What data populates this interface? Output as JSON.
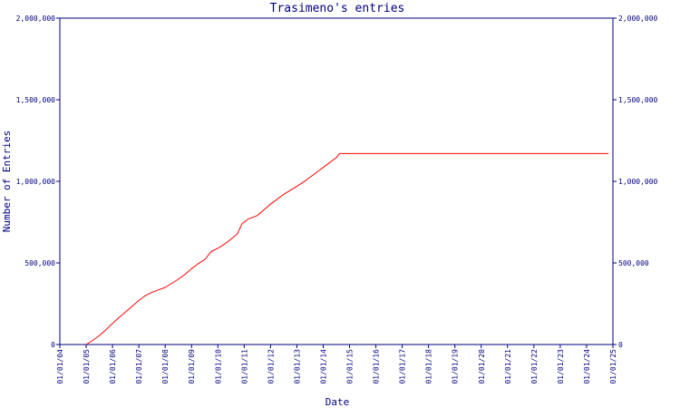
{
  "chart_data": {
    "type": "line",
    "title": "Trasimeno's entries",
    "xlabel": "Date",
    "ylabel": "Number of Entries",
    "x_ticks": [
      "01/01/04",
      "01/01/05",
      "01/01/06",
      "01/01/07",
      "01/01/08",
      "01/01/09",
      "01/01/10",
      "01/01/11",
      "01/01/12",
      "01/01/13",
      "01/01/14",
      "01/01/15",
      "01/01/16",
      "01/01/17",
      "01/01/18",
      "01/01/19",
      "01/01/20",
      "01/01/21",
      "01/01/22",
      "01/01/23",
      "01/01/24",
      "01/01/25"
    ],
    "y_ticks": [
      "0",
      "500,000",
      "1,000,000",
      "1,500,000",
      "2,000,000"
    ],
    "y_tick_values": [
      0,
      500000,
      1000000,
      1500000,
      2000000
    ],
    "ylim": [
      0,
      2000000
    ],
    "xlim": [
      "2004-01-01",
      "2025-01-01"
    ],
    "grid": false,
    "y_axis_both_sides": true,
    "series": [
      {
        "color": "#ff0000",
        "x": [
          "2005-01-01",
          "2005-04-01",
          "2005-07-01",
          "2005-10-01",
          "2006-01-01",
          "2006-04-01",
          "2006-07-01",
          "2006-10-01",
          "2007-01-01",
          "2007-04-01",
          "2007-07-01",
          "2007-10-01",
          "2008-01-01",
          "2008-04-01",
          "2008-07-01",
          "2008-10-01",
          "2009-01-01",
          "2009-04-01",
          "2009-07-01",
          "2009-10-01",
          "2010-01-01",
          "2010-04-01",
          "2010-07-01",
          "2010-10-01",
          "2010-12-01",
          "2011-03-01",
          "2011-07-01",
          "2011-10-01",
          "2012-01-01",
          "2012-04-01",
          "2012-07-01",
          "2012-10-01",
          "2013-01-01",
          "2013-04-01",
          "2013-07-01",
          "2013-10-01",
          "2014-01-01",
          "2014-04-01",
          "2014-07-01",
          "2014-08-15",
          "2015-01-01",
          "2016-01-01",
          "2018-01-01",
          "2020-01-01",
          "2022-01-01",
          "2024-01-01",
          "2024-11-01"
        ],
        "values": [
          0,
          25000,
          55000,
          90000,
          130000,
          165000,
          200000,
          235000,
          270000,
          300000,
          320000,
          335000,
          350000,
          375000,
          400000,
          430000,
          465000,
          495000,
          520000,
          570000,
          590000,
          615000,
          645000,
          680000,
          740000,
          770000,
          790000,
          825000,
          860000,
          890000,
          920000,
          945000,
          970000,
          995000,
          1025000,
          1055000,
          1085000,
          1115000,
          1145000,
          1170000,
          1170000,
          1170000,
          1170000,
          1170000,
          1170000,
          1170000,
          1170000
        ]
      }
    ]
  }
}
